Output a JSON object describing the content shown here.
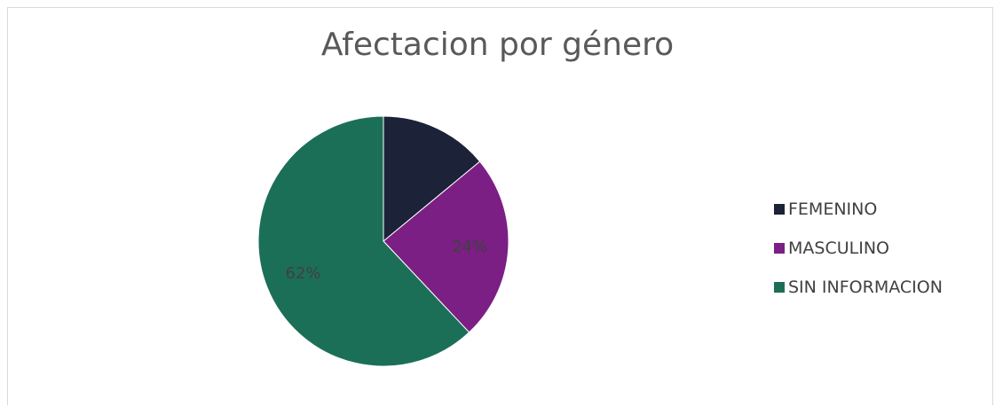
{
  "chart_data": {
    "type": "pie",
    "title": "Afectacion por género",
    "categories": [
      "FEMENINO",
      "MASCULINO",
      "SIN INFORMACION"
    ],
    "values": [
      14,
      24,
      62
    ],
    "data_labels": [
      "",
      "24%",
      "62%"
    ],
    "colors": [
      "#1c2237",
      "#7b1f84",
      "#1c6f57"
    ],
    "legend_position": "right"
  }
}
